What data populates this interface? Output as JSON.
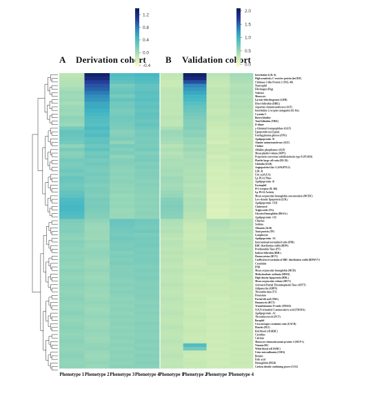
{
  "panels": {
    "a": {
      "letter": "A",
      "title": "Derivation cohort"
    },
    "b": {
      "letter": "B",
      "title": "Validation cohort"
    }
  },
  "chart_data": [
    {
      "type": "heatmap",
      "name": "derivation",
      "colorscale": [
        "#ffffcc",
        "#c7e9b4",
        "#7fcdbb",
        "#41b6c4",
        "#2c7fb8",
        "#253494",
        "#081d58"
      ],
      "zmin": -0.45,
      "zmax": 1.4,
      "colorbar_ticks": [
        -0.4,
        0.0,
        0.4,
        0.8,
        1.2
      ],
      "colorbar_tick_labels": [
        "-0.4",
        "0.0",
        "0.4",
        "0.8",
        "1.2"
      ],
      "columns": [
        "Phenotype 1",
        "Phenotype 2",
        "Phenotype 3",
        "Phenotype 4"
      ],
      "rows": [
        "Interleukin-6 (IL-6)",
        "High-sensitivity C-reactive protein (hsCRP)",
        "Chitinase-3-like Protein 1 (YKL-40)",
        "Neutrophil",
        "Fibrinogen (Fbg)",
        "Violence",
        "Monocyte",
        "Lactate dehydrogenase (LDH)",
        "Direct bilirubin (DBIL)",
        "Aspartate Aminotransferase (AST)",
        "Interleukin-2 receptor antagonist (IL-Ra)",
        "Cystatin C",
        "Butyrylcholine",
        "Total bilirubin (TBIL)",
        "D-dimer",
        "γ-Glutamyl transpeptidase (GGT)",
        "Lipoprotein (a) (Lp(a))",
        "Fasting plasma glucose (FPG)",
        "Apolipoprotein -B",
        "Alanine aminotransferase (ALT)",
        "Choline",
        "Alkaline phosphatase (ALP)",
        "Mean platelet volume (MPV)",
        "Proprotein convertase subtilisin/kexin type 9 (PCSK9)",
        "Platelet large cell ratio (PLCR)",
        "Globulin (GLB)",
        "Angiopoietin-Like 3 (ANGPTL3)",
        "LDL-R",
        "Uric acid (UA)",
        "Lp-PLA2 Mass",
        "Apolipoprotein -B",
        "Eosinophil",
        "H-5 receptor (IL-6R)",
        "Lp-PLA2 Activity",
        "Mean corpuscular hemoglobin concentration (MCHC)",
        "Low-density lipoprotein (LDL)",
        "Apolipoprotein -CIII",
        "Cholesterol",
        "Triglyceride (TG)",
        "Glycated hemoglobin (HbA1c)",
        "Apolipoprotein -CII",
        "Chlorine",
        "Sodium",
        "Albumin (ALB)",
        "Total protein (TP)",
        "Lymphocyte",
        "Apolipoprotein -A1",
        "International normalized ratio (INR)",
        "RBC distribution width (RDW)",
        "Prothrombin Time (PT)",
        "Indirect bilirubin (IBIL)",
        "Homocysteine (HCY)",
        "Coefficient of variation of RBC distribution width (RDWCV)",
        "Creatinine",
        "PNK",
        "Mean corpuscular hemoglobin (MCH)",
        "Methylmalonic acidemia (MMA)",
        "High-density lipoprotein (HDL)",
        "Mean corpuscular volume (MCV)",
        "Activated Partial Thromboplastin Time (APTT)",
        "Adiponectin (ADPN)",
        "Thrombin time (TT)",
        "Potassium",
        "Partial tilt acid (TBA)",
        "Hematocrit (HCT)",
        "Trimethylamine-N-oxide (TMAO)",
        "N,N,N-trimethyl-5-aminovaleric acid (TMAVA)",
        "Apolipoprotein -A1",
        "Thrombocytocrit (PCT)",
        "Basophil",
        "Urea nitrogen creatinine ratio (UACR)",
        "Platelet (PLT)",
        "Red blood cell (RBC)",
        "Carnitine",
        "Calcium",
        "Monocyte chemoattractant protein-1 (MCP-1)",
        "Vitamin B12",
        "White blood cell (WBC)",
        "Urine microalbumin (UMA)",
        "Betaine",
        "Folic acid",
        "Hemoglobin (HGB)",
        "Carbon dioxide combining power (CO2)"
      ],
      "values": [
        [
          -0.1,
          1.3,
          0.4,
          0.45
        ],
        [
          -0.08,
          1.2,
          0.36,
          0.4
        ],
        [
          -0.05,
          1.05,
          0.32,
          0.38
        ],
        [
          -0.05,
          0.95,
          0.2,
          0.3
        ],
        [
          0.0,
          0.9,
          0.25,
          0.3
        ],
        [
          0.05,
          0.8,
          0.28,
          0.35
        ],
        [
          0.02,
          0.7,
          0.2,
          0.32
        ],
        [
          0.05,
          0.65,
          0.3,
          0.36
        ],
        [
          0.0,
          0.55,
          0.22,
          0.3
        ],
        [
          0.04,
          0.55,
          0.24,
          0.33
        ],
        [
          0.06,
          0.5,
          0.18,
          0.28
        ],
        [
          0.04,
          0.45,
          0.2,
          0.32
        ],
        [
          0.1,
          0.4,
          0.24,
          0.3
        ],
        [
          0.08,
          0.38,
          0.22,
          0.26
        ],
        [
          0.05,
          0.35,
          0.2,
          0.3
        ],
        [
          0.2,
          0.42,
          0.18,
          0.25
        ],
        [
          0.3,
          0.35,
          0.12,
          0.2
        ],
        [
          0.28,
          0.4,
          0.15,
          0.22
        ],
        [
          0.25,
          0.3,
          0.18,
          0.18
        ],
        [
          0.22,
          0.32,
          0.1,
          0.2
        ],
        [
          0.1,
          0.25,
          0.2,
          0.18
        ],
        [
          0.2,
          0.32,
          0.15,
          0.22
        ],
        [
          0.12,
          0.22,
          0.18,
          0.15
        ],
        [
          0.14,
          0.26,
          0.1,
          0.18
        ],
        [
          0.22,
          0.2,
          0.16,
          0.2
        ],
        [
          0.18,
          0.24,
          0.14,
          0.16
        ],
        [
          0.2,
          0.2,
          0.12,
          0.18
        ],
        [
          0.25,
          0.18,
          0.1,
          0.14
        ],
        [
          0.2,
          0.22,
          0.12,
          0.16
        ],
        [
          0.28,
          0.18,
          0.1,
          0.14
        ],
        [
          0.26,
          0.2,
          0.12,
          0.12
        ],
        [
          0.22,
          0.16,
          0.1,
          0.14
        ],
        [
          0.24,
          0.18,
          0.08,
          0.12
        ],
        [
          0.3,
          0.18,
          0.1,
          0.12
        ],
        [
          0.32,
          0.16,
          0.06,
          0.1
        ],
        [
          0.4,
          0.2,
          0.08,
          0.12
        ],
        [
          0.42,
          0.18,
          0.06,
          0.1
        ],
        [
          0.45,
          0.2,
          0.08,
          0.12
        ],
        [
          0.44,
          0.18,
          0.05,
          0.1
        ],
        [
          0.4,
          0.16,
          0.06,
          0.12
        ],
        [
          0.38,
          0.14,
          0.06,
          0.1
        ],
        [
          0.18,
          0.1,
          0.28,
          0.24
        ],
        [
          0.16,
          0.06,
          0.26,
          0.22
        ],
        [
          0.14,
          0.04,
          0.24,
          0.2
        ],
        [
          0.16,
          0.06,
          0.22,
          0.24
        ],
        [
          0.12,
          0.05,
          0.2,
          0.18
        ],
        [
          0.1,
          0.04,
          0.24,
          0.22
        ],
        [
          0.14,
          0.08,
          0.2,
          0.2
        ],
        [
          0.12,
          0.06,
          0.18,
          0.22
        ],
        [
          0.1,
          0.08,
          0.2,
          0.18
        ],
        [
          0.12,
          0.1,
          0.16,
          0.2
        ],
        [
          0.1,
          0.08,
          0.18,
          0.18
        ],
        [
          0.12,
          0.06,
          0.16,
          0.2
        ],
        [
          0.1,
          0.04,
          0.18,
          0.18
        ],
        [
          0.08,
          0.06,
          0.14,
          0.16
        ],
        [
          0.12,
          0.08,
          0.14,
          0.18
        ],
        [
          0.1,
          0.06,
          0.16,
          0.16
        ],
        [
          0.08,
          0.04,
          0.14,
          0.18
        ],
        [
          0.1,
          0.06,
          0.12,
          0.16
        ],
        [
          0.12,
          0.08,
          0.14,
          0.14
        ],
        [
          0.1,
          0.06,
          0.12,
          0.16
        ],
        [
          0.08,
          0.06,
          0.14,
          0.14
        ],
        [
          0.1,
          0.04,
          0.12,
          0.16
        ],
        [
          0.12,
          0.06,
          0.1,
          0.14
        ],
        [
          0.1,
          0.08,
          0.12,
          0.12
        ],
        [
          0.08,
          0.06,
          0.1,
          0.14
        ],
        [
          0.1,
          0.04,
          0.12,
          0.12
        ],
        [
          0.12,
          0.06,
          0.1,
          0.14
        ],
        [
          0.1,
          0.08,
          0.12,
          0.12
        ],
        [
          0.08,
          0.06,
          0.1,
          0.12
        ],
        [
          0.1,
          0.04,
          0.12,
          0.14
        ],
        [
          0.12,
          0.06,
          0.1,
          0.12
        ],
        [
          0.1,
          0.08,
          0.12,
          0.14
        ],
        [
          0.08,
          0.06,
          0.1,
          0.12
        ],
        [
          0.1,
          0.04,
          0.12,
          0.12
        ],
        [
          0.12,
          0.06,
          0.1,
          0.14
        ],
        [
          0.1,
          0.08,
          0.12,
          0.12
        ],
        [
          0.08,
          0.1,
          0.1,
          0.14
        ],
        [
          0.1,
          0.06,
          0.12,
          0.12
        ],
        [
          0.12,
          0.04,
          0.1,
          0.14
        ],
        [
          0.1,
          0.06,
          0.12,
          0.12
        ],
        [
          0.08,
          0.08,
          0.1,
          0.14
        ],
        [
          0.1,
          0.06,
          0.12,
          0.12
        ]
      ]
    },
    {
      "type": "heatmap",
      "name": "validation",
      "colorscale": [
        "#ffffcc",
        "#c7e9b4",
        "#7fcdbb",
        "#41b6c4",
        "#2c7fb8",
        "#253494",
        "#081d58"
      ],
      "zmin": -0.1,
      "zmax": 2.1,
      "colorbar_ticks": [
        0.0,
        0.5,
        1.0,
        1.5,
        2.0
      ],
      "colorbar_tick_labels": [
        "0.0",
        "0.5",
        "1.0",
        "1.5",
        "2.0"
      ],
      "columns": [
        "Phenotype 1",
        "Phenotype 2",
        "Phenotype 3",
        "Phenotype 4"
      ],
      "values": [
        [
          0.3,
          2.0,
          0.35,
          0.45
        ],
        [
          0.28,
          1.9,
          0.3,
          0.42
        ],
        [
          0.25,
          1.6,
          0.28,
          0.4
        ],
        [
          0.25,
          1.3,
          0.26,
          0.36
        ],
        [
          0.3,
          1.2,
          0.3,
          0.38
        ],
        [
          0.32,
          1.1,
          0.32,
          0.4
        ],
        [
          0.3,
          1.0,
          0.28,
          0.36
        ],
        [
          0.32,
          0.95,
          0.3,
          0.38
        ],
        [
          0.3,
          0.85,
          0.28,
          0.36
        ],
        [
          0.3,
          0.8,
          0.3,
          0.38
        ],
        [
          0.32,
          0.75,
          0.26,
          0.34
        ],
        [
          0.3,
          0.7,
          0.28,
          0.36
        ],
        [
          0.34,
          0.65,
          0.3,
          0.34
        ],
        [
          0.32,
          0.62,
          0.28,
          0.32
        ],
        [
          0.3,
          0.6,
          0.26,
          0.34
        ],
        [
          0.4,
          0.62,
          0.24,
          0.3
        ],
        [
          0.5,
          0.55,
          0.22,
          0.28
        ],
        [
          0.48,
          0.58,
          0.24,
          0.3
        ],
        [
          0.45,
          0.5,
          0.24,
          0.26
        ],
        [
          0.42,
          0.52,
          0.2,
          0.28
        ],
        [
          0.35,
          0.45,
          0.26,
          0.26
        ],
        [
          0.4,
          0.5,
          0.24,
          0.3
        ],
        [
          0.36,
          0.42,
          0.26,
          0.24
        ],
        [
          0.38,
          0.45,
          0.2,
          0.26
        ],
        [
          0.42,
          0.4,
          0.24,
          0.28
        ],
        [
          0.4,
          0.42,
          0.22,
          0.24
        ],
        [
          0.42,
          0.4,
          0.2,
          0.26
        ],
        [
          0.45,
          0.38,
          0.18,
          0.22
        ],
        [
          0.42,
          0.4,
          0.2,
          0.24
        ],
        [
          0.48,
          0.38,
          0.18,
          0.22
        ],
        [
          0.46,
          0.4,
          0.2,
          0.2
        ],
        [
          0.44,
          0.36,
          0.18,
          0.22
        ],
        [
          0.46,
          0.38,
          0.16,
          0.2
        ],
        [
          0.5,
          0.38,
          0.18,
          0.2
        ],
        [
          0.52,
          0.36,
          0.14,
          0.18
        ],
        [
          0.6,
          0.4,
          0.16,
          0.2
        ],
        [
          0.62,
          0.38,
          0.14,
          0.18
        ],
        [
          0.64,
          0.4,
          0.16,
          0.2
        ],
        [
          0.62,
          0.38,
          0.12,
          0.18
        ],
        [
          0.6,
          0.36,
          0.14,
          0.2
        ],
        [
          0.58,
          0.34,
          0.14,
          0.18
        ],
        [
          0.4,
          0.3,
          0.4,
          0.36
        ],
        [
          0.38,
          0.26,
          0.38,
          0.34
        ],
        [
          0.36,
          0.24,
          0.36,
          0.32
        ],
        [
          0.38,
          0.26,
          0.34,
          0.36
        ],
        [
          0.34,
          0.24,
          0.32,
          0.3
        ],
        [
          0.32,
          0.24,
          0.36,
          0.34
        ],
        [
          0.36,
          0.28,
          0.32,
          0.32
        ],
        [
          0.34,
          0.26,
          0.3,
          0.34
        ],
        [
          0.32,
          0.28,
          0.32,
          0.3
        ],
        [
          0.34,
          0.3,
          0.28,
          0.32
        ],
        [
          0.32,
          0.28,
          0.3,
          0.3
        ],
        [
          0.34,
          0.26,
          0.28,
          0.32
        ],
        [
          0.32,
          0.24,
          0.3,
          0.3
        ],
        [
          0.3,
          0.26,
          0.26,
          0.28
        ],
        [
          0.34,
          0.28,
          0.26,
          0.3
        ],
        [
          0.32,
          0.26,
          0.28,
          0.28
        ],
        [
          0.3,
          0.24,
          0.26,
          0.3
        ],
        [
          0.32,
          0.26,
          0.24,
          0.28
        ],
        [
          0.34,
          0.28,
          0.26,
          0.26
        ],
        [
          0.32,
          0.26,
          0.24,
          0.28
        ],
        [
          0.3,
          0.26,
          0.26,
          0.26
        ],
        [
          0.32,
          0.24,
          0.24,
          0.28
        ],
        [
          0.34,
          0.26,
          0.22,
          0.26
        ],
        [
          0.32,
          0.28,
          0.24,
          0.24
        ],
        [
          0.3,
          0.26,
          0.22,
          0.26
        ],
        [
          0.32,
          0.24,
          0.24,
          0.24
        ],
        [
          0.34,
          0.26,
          0.22,
          0.26
        ],
        [
          0.32,
          0.28,
          0.24,
          0.24
        ],
        [
          0.3,
          0.26,
          0.22,
          0.24
        ],
        [
          0.32,
          0.24,
          0.24,
          0.26
        ],
        [
          0.34,
          0.26,
          0.22,
          0.24
        ],
        [
          0.32,
          0.28,
          0.24,
          0.26
        ],
        [
          0.3,
          0.26,
          0.22,
          0.24
        ],
        [
          0.32,
          0.24,
          0.24,
          0.24
        ],
        [
          0.34,
          0.26,
          0.22,
          0.26
        ],
        [
          0.32,
          0.9,
          0.24,
          0.24
        ],
        [
          0.3,
          0.7,
          0.22,
          0.26
        ],
        [
          0.32,
          0.26,
          0.24,
          0.24
        ],
        [
          0.34,
          0.24,
          0.22,
          0.26
        ],
        [
          0.32,
          0.26,
          0.24,
          0.24
        ],
        [
          0.3,
          0.28,
          0.22,
          0.26
        ],
        [
          0.32,
          0.26,
          0.24,
          0.24
        ]
      ]
    }
  ]
}
